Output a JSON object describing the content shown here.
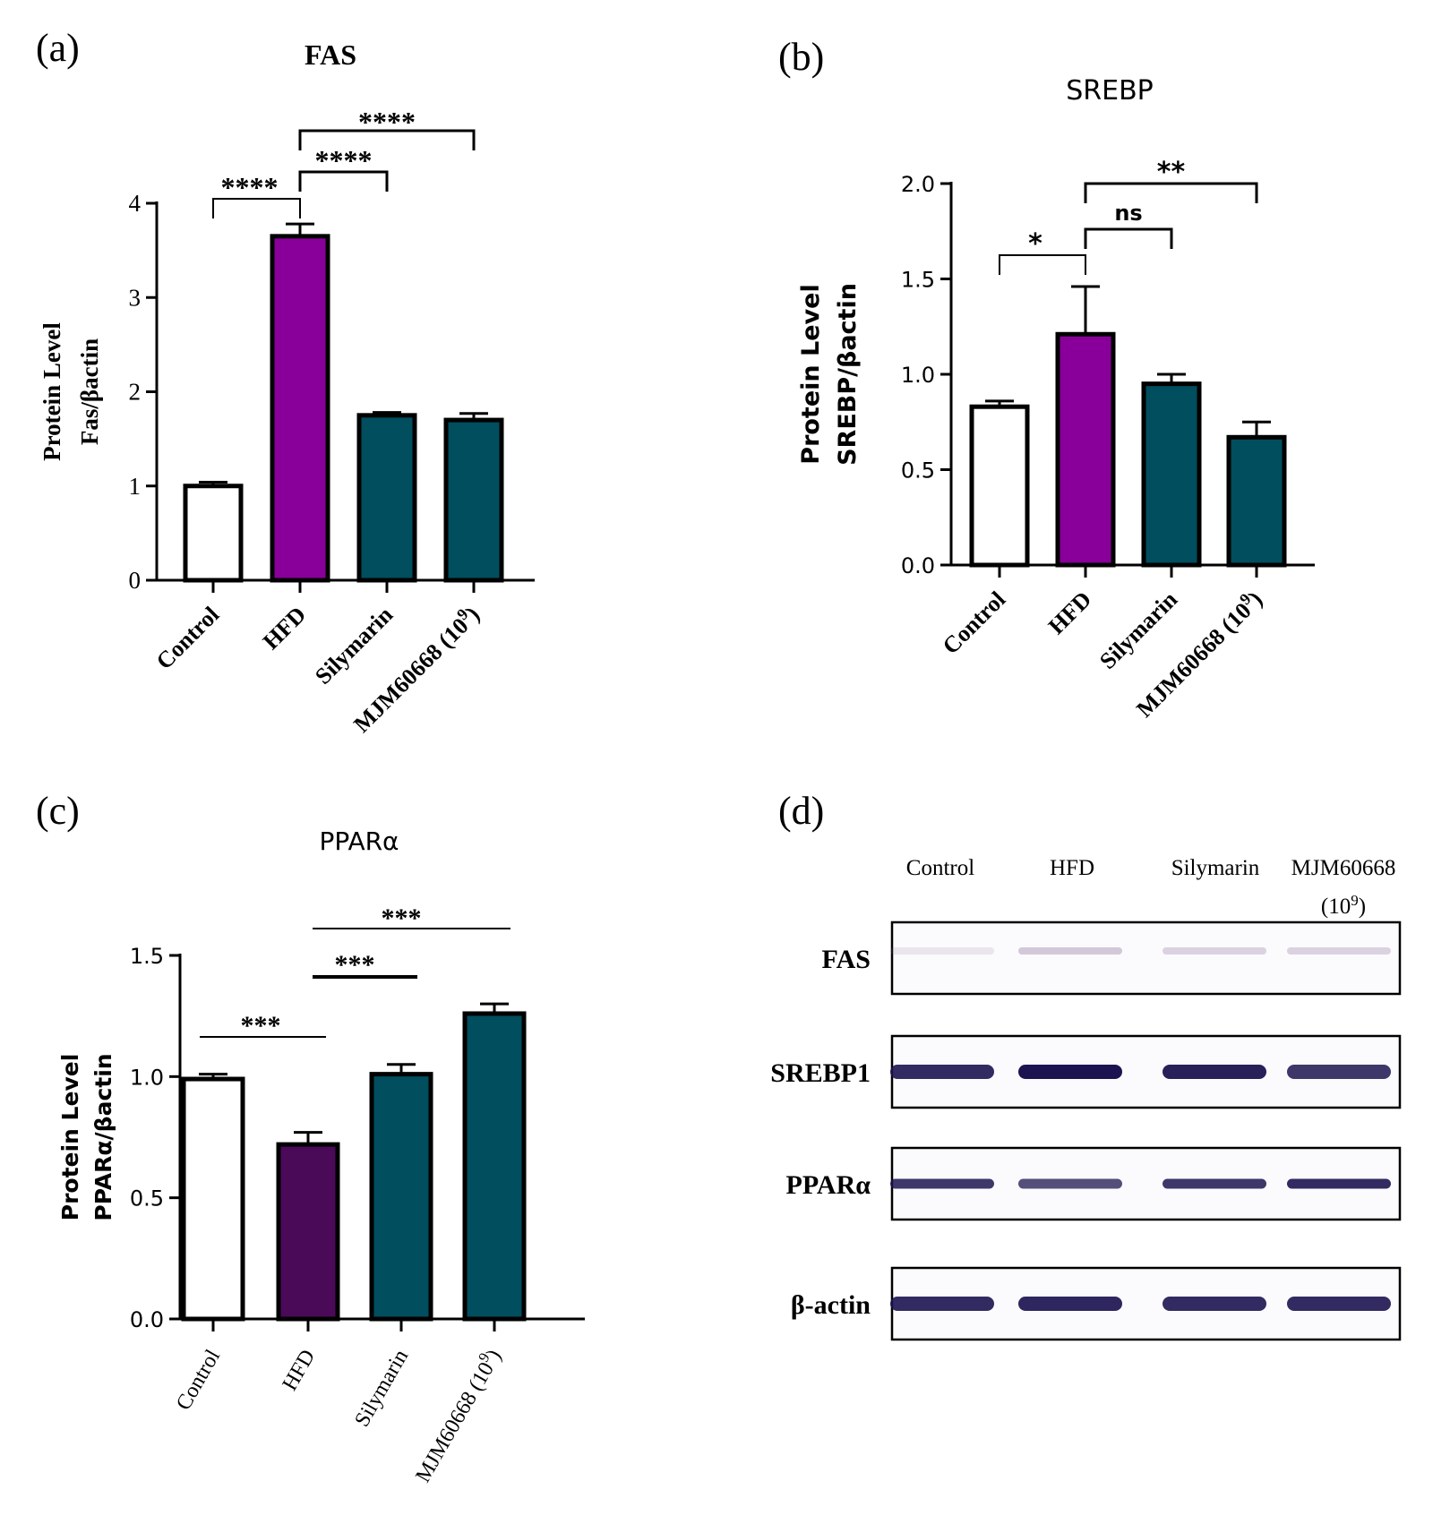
{
  "colors": {
    "control": "#ffffff",
    "purple": "#880099",
    "dark_purple": "#4a0a58",
    "teal": "#004e5e",
    "stroke": "#000000",
    "band": "#1c1450",
    "faint_band": "#8a6a9a"
  },
  "chart_data": [
    {
      "panel_label": "(a)",
      "type": "bar",
      "title": "FAS",
      "ylabel_line1": "Protein Level",
      "ylabel_line2": "Fas/βactin",
      "ylim": [
        0,
        4
      ],
      "yticks": [
        "0",
        "1",
        "2",
        "3",
        "4"
      ],
      "ytick_values": [
        0,
        1,
        2,
        3,
        4
      ],
      "categories": [
        "Control",
        "HFD",
        "Silymarin",
        "MJM60668 (10"
      ],
      "category_superscript": "9",
      "category_close": ")",
      "values": [
        1.0,
        3.65,
        1.75,
        1.7
      ],
      "errors": [
        0.04,
        0.13,
        0.03,
        0.07
      ],
      "bar_colors": [
        "control",
        "purple",
        "teal",
        "teal"
      ],
      "significance": [
        {
          "from": 0,
          "to": 1,
          "label": "****"
        },
        {
          "from": 1,
          "to": 2,
          "label": "****"
        },
        {
          "from": 1,
          "to": 3,
          "label": "****"
        }
      ]
    },
    {
      "panel_label": "(b)",
      "type": "bar",
      "title": "SREBP",
      "ylabel_line1": "Protein Level",
      "ylabel_line2": "SREBP/βactin",
      "ylim": [
        0,
        2
      ],
      "yticks": [
        "0.0",
        "0.5",
        "1.0",
        "1.5",
        "2.0"
      ],
      "ytick_values": [
        0,
        0.5,
        1.0,
        1.5,
        2.0
      ],
      "categories": [
        "Control",
        "HFD",
        "Silymarin",
        "MJM60668 (10"
      ],
      "category_superscript": "9",
      "category_close": ")",
      "values": [
        0.83,
        1.21,
        0.95,
        0.67
      ],
      "errors": [
        0.03,
        0.25,
        0.05,
        0.08
      ],
      "bar_colors": [
        "control",
        "purple",
        "teal",
        "teal"
      ],
      "significance": [
        {
          "from": 0,
          "to": 1,
          "label": "*"
        },
        {
          "from": 1,
          "to": 2,
          "label": "ns"
        },
        {
          "from": 1,
          "to": 3,
          "label": "**"
        }
      ]
    },
    {
      "panel_label": "(c)",
      "type": "bar",
      "title": "PPARα",
      "ylabel_line1": "Protein Level",
      "ylabel_line2": "PPARα/βactin",
      "ylim": [
        0,
        1.5
      ],
      "yticks": [
        "0.0",
        "0.5",
        "1.0",
        "1.5"
      ],
      "ytick_values": [
        0,
        0.5,
        1.0,
        1.5
      ],
      "categories": [
        "Control",
        "HFD",
        "Silymarin",
        "MJM60668 (10"
      ],
      "category_superscript": "9",
      "category_close": ")",
      "values": [
        0.99,
        0.72,
        1.01,
        1.26
      ],
      "errors": [
        0.02,
        0.05,
        0.04,
        0.04
      ],
      "bar_colors": [
        "control",
        "dark_purple",
        "teal",
        "teal"
      ],
      "significance": [
        {
          "from": 0,
          "to": 1,
          "label": "***"
        },
        {
          "from": 1,
          "to": 2,
          "label": "***"
        },
        {
          "from": 1,
          "to": 3,
          "label": "***"
        }
      ]
    }
  ],
  "blot": {
    "panel_label": "(d)",
    "columns": [
      "Control",
      "HFD",
      "Silymarin",
      "MJM60668"
    ],
    "last_column_line2": "(10",
    "last_column_sup": "9",
    "last_column_close": ")",
    "rows": [
      {
        "label": "FAS",
        "intensities": [
          0.15,
          0.35,
          0.28,
          0.28
        ]
      },
      {
        "label": "SREBP1",
        "intensities": [
          0.9,
          1.0,
          0.95,
          0.85
        ]
      },
      {
        "label": "PPARα",
        "intensities": [
          0.85,
          0.75,
          0.85,
          0.9
        ]
      },
      {
        "label": "β-actin",
        "intensities": [
          0.9,
          0.92,
          0.9,
          0.9
        ]
      }
    ]
  }
}
